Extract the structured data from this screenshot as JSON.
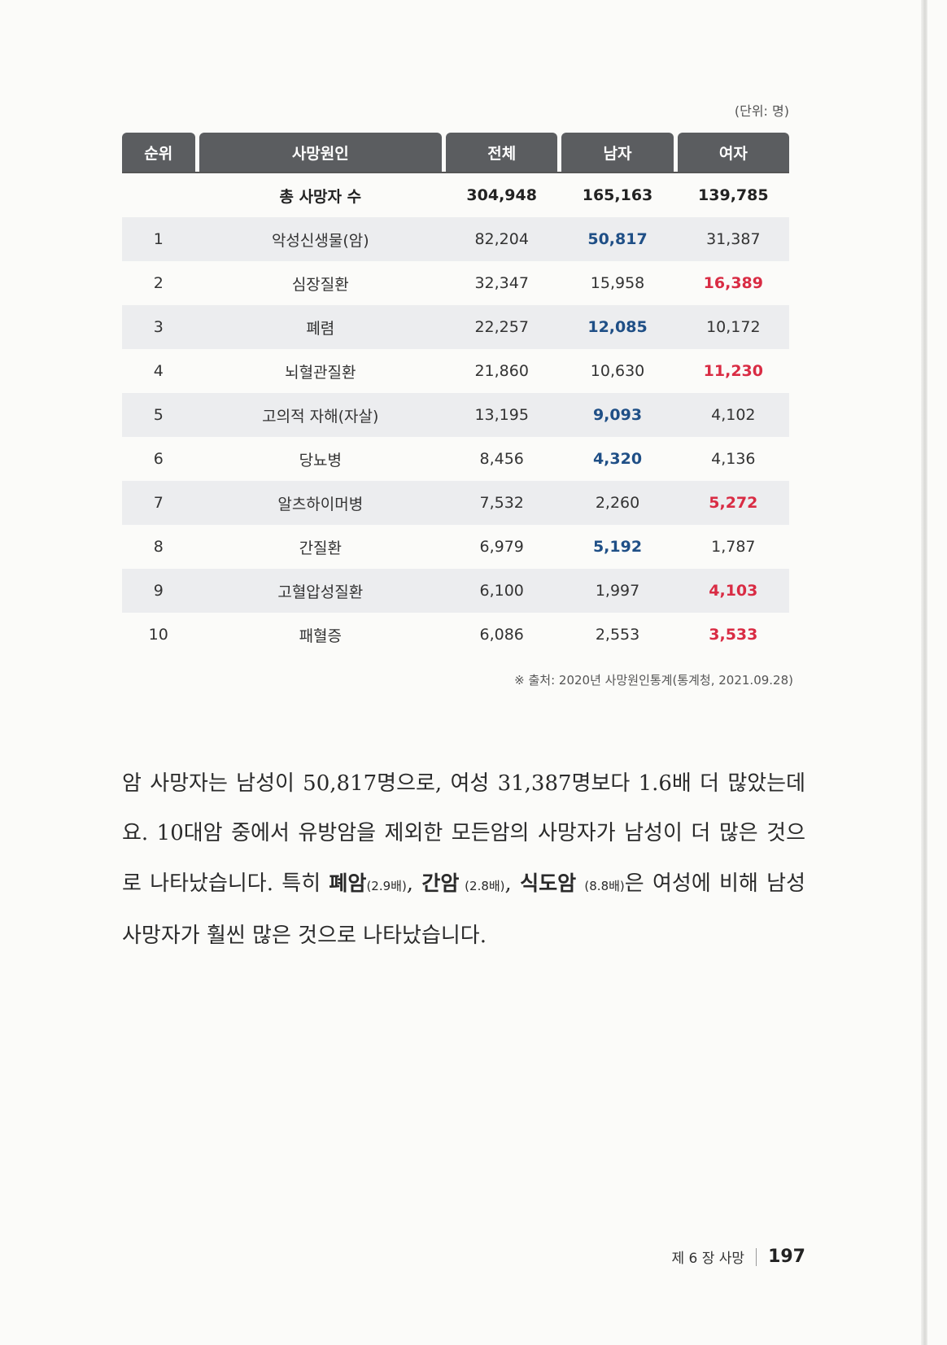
{
  "unit_label": "(단위: 명)",
  "table": {
    "headers": [
      "순위",
      "사망원인",
      "전체",
      "남자",
      "여자"
    ],
    "total_row": {
      "label": "총 사망자 수",
      "total": "304,948",
      "male": "165,163",
      "female": "139,785"
    },
    "rows": [
      {
        "rank": "1",
        "cause": "악성신생물(암)",
        "total": "82,204",
        "male": "50,817",
        "female": "31,387",
        "highlight": "male"
      },
      {
        "rank": "2",
        "cause": "심장질환",
        "total": "32,347",
        "male": "15,958",
        "female": "16,389",
        "highlight": "female"
      },
      {
        "rank": "3",
        "cause": "폐렴",
        "total": "22,257",
        "male": "12,085",
        "female": "10,172",
        "highlight": "male"
      },
      {
        "rank": "4",
        "cause": "뇌혈관질환",
        "total": "21,860",
        "male": "10,630",
        "female": "11,230",
        "highlight": "female"
      },
      {
        "rank": "5",
        "cause": "고의적 자해(자살)",
        "total": "13,195",
        "male": "9,093",
        "female": "4,102",
        "highlight": "male"
      },
      {
        "rank": "6",
        "cause": "당뇨병",
        "total": "8,456",
        "male": "4,320",
        "female": "4,136",
        "highlight": "male"
      },
      {
        "rank": "7",
        "cause": "알츠하이머병",
        "total": "7,532",
        "male": "2,260",
        "female": "5,272",
        "highlight": "female"
      },
      {
        "rank": "8",
        "cause": "간질환",
        "total": "6,979",
        "male": "5,192",
        "female": "1,787",
        "highlight": "male"
      },
      {
        "rank": "9",
        "cause": "고혈압성질환",
        "total": "6,100",
        "male": "1,997",
        "female": "4,103",
        "highlight": "female"
      },
      {
        "rank": "10",
        "cause": "패혈증",
        "total": "6,086",
        "male": "2,553",
        "female": "3,533",
        "highlight": "female"
      }
    ]
  },
  "source": "※ 출처: 2020년 사망원인통계(통계청, 2021.09.28)",
  "paragraph": {
    "p1": "암 사망자는 남성이 50,817명으로, 여성 31,387명보다 1.6배 더 많았는데요. 10대암 중에서 유방암을 제외한 모든암의 사망자가 남성이 더 많은 것으로 나타났습니다. 특히 ",
    "lung": "폐암",
    "lung_ratio": "(2.9배)",
    "comma1": ", ",
    "liver": "간암",
    "liver_ratio": " (2.8배)",
    "comma2": ", ",
    "esoph": "식도암",
    "esoph_ratio": "(8.8배)",
    "p2": "은 여성에 비해 남성 사망자가 훨씬 많은 것으로 나타났습니다."
  },
  "footer": {
    "chapter": "제 6 장 사망",
    "page_number": "197"
  },
  "colors": {
    "header_bg": "#5b5d60",
    "male_highlight": "#1f4f86",
    "female_highlight": "#d92c44",
    "row_shade": "#ecedef"
  }
}
